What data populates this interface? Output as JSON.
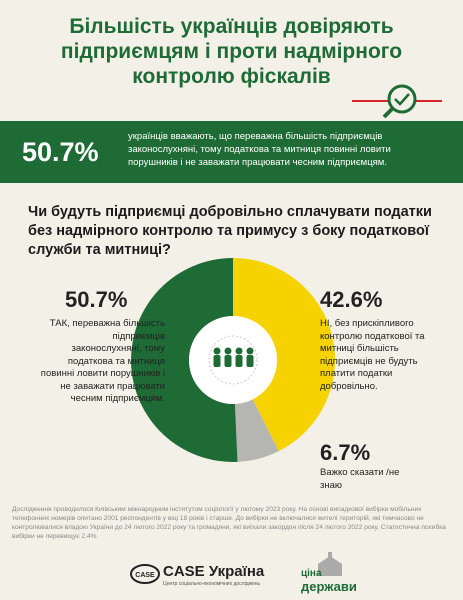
{
  "header": {
    "title_lines": [
      "Більшість українців довіряють",
      "підприємцям і проти надмірного",
      "контролю фіскалів"
    ]
  },
  "banner": {
    "figure": "50.7%",
    "text": "українців вважають, що переважна більшість підприємців законослухняні, тому податкова та митниця повинні ловити порушників і не заважати працювати чесним підприємцям."
  },
  "chart_data": {
    "type": "pie",
    "title": "Чи будуть підприємці добровільно сплачувати податки без надмірного контролю та примусу з боку податкової служби та митниці?",
    "categories": [
      "ТАК, переважна більшість підприємців законослухняні, тому податкова та митниця повинні ловити порушників і не заважати працювати чесним підприємцям.",
      "НІ, без прискіпливого контролю податкової та митниці більшість підприємців не будуть платити податки добровільно.",
      "Важко сказати /не знаю"
    ],
    "values": [
      50.7,
      42.6,
      6.7
    ],
    "value_labels": [
      "50.7%",
      "42.6%",
      "6.7%"
    ],
    "colors": [
      "#1e6b36",
      "#f6d200",
      "#b5b5b2"
    ]
  },
  "footer": {
    "note": "Дослідження проводилося Київським міжнародним інститутом соціології у лютому 2023 року. На основі випадкової вибірки мобільних телефонних номерів опитано 2001 респондентів у віці 18 років і старше. До вибірки не включалися жителі територій, які тимчасово не контролювалися владою України до 24 лютого 2022 року та громадяни, які виїхали закордон після 24 лютого 2022 року. Статистична похибка вибірки не перевищує 2,4%.",
    "logo1": "CASE Україна",
    "logo1_sub": "Центр соціально-економічних досліджень",
    "logo2_a": "ціна",
    "logo2_b": "держави"
  }
}
